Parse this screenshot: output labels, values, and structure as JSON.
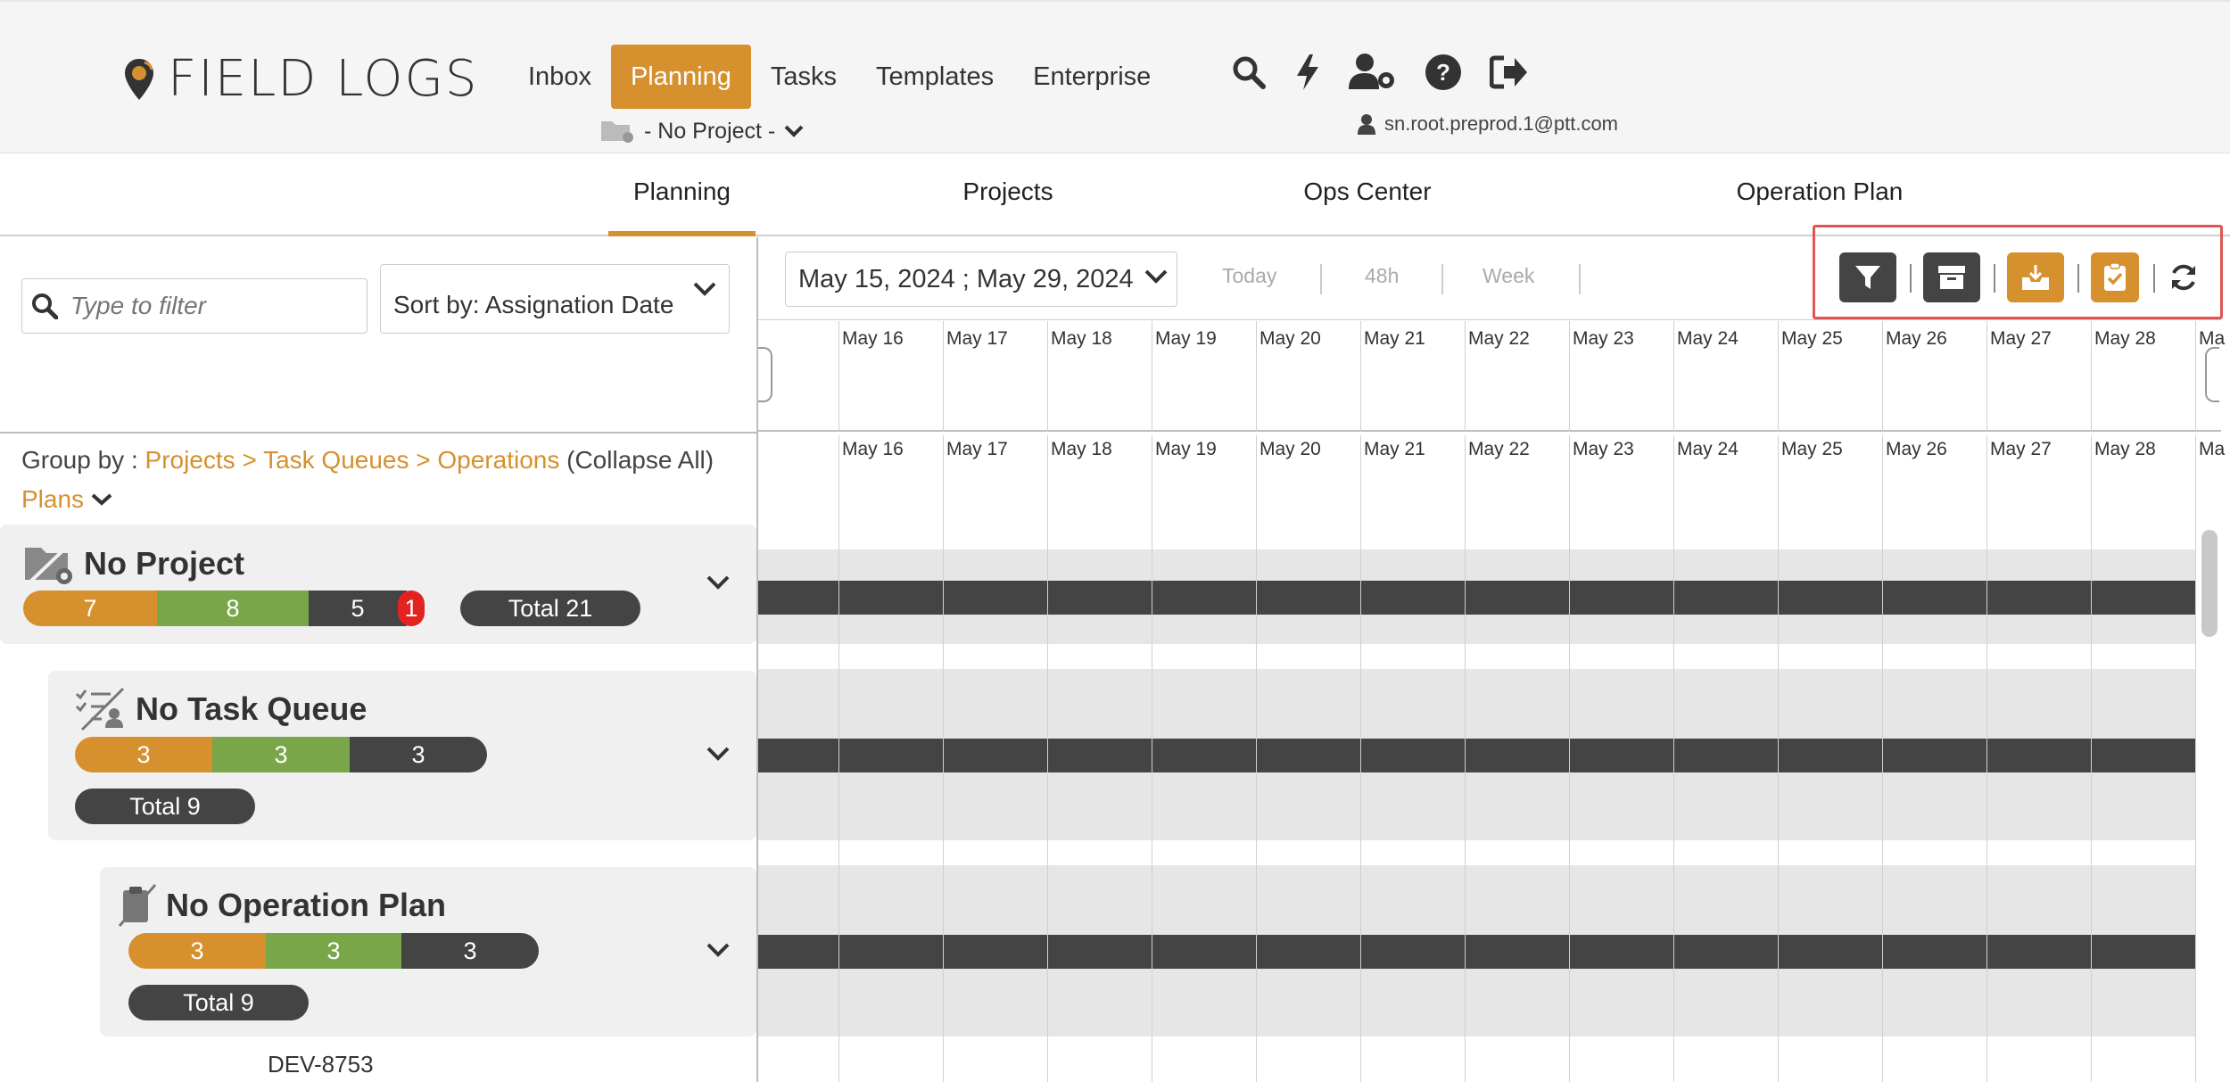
{
  "app": {
    "logo_text": "FIELD LOGS"
  },
  "nav": {
    "items": [
      "Inbox",
      "Planning",
      "Tasks",
      "Templates",
      "Enterprise"
    ],
    "active": "Planning",
    "icons": [
      "search-icon",
      "bolt-icon",
      "user-gear-icon",
      "help-icon",
      "logout-icon"
    ]
  },
  "project_selector": {
    "label": "- No Project -"
  },
  "user": {
    "email": "sn.root.preprod.1@ptt.com"
  },
  "subtabs": {
    "items": [
      "Planning",
      "Projects",
      "Ops Center",
      "Operation Plan"
    ],
    "active": "Planning"
  },
  "filter": {
    "placeholder": "Type to filter"
  },
  "sort": {
    "label": "Sort by: Assignation Date"
  },
  "groupby": {
    "prefix": "Group by :",
    "path": "Projects > Task Queues > Operations",
    "collapse": "(Collapse All)",
    "plans": "Plans"
  },
  "date_range": {
    "label": "May 15, 2024 ; May 29, 2024"
  },
  "quick_ranges": [
    "Today",
    "48h",
    "Week"
  ],
  "toolbar_icons": [
    "filter-icon",
    "archive-icon",
    "inbox-download-icon",
    "clipboard-check-icon",
    "refresh-icon"
  ],
  "timeline": {
    "days": [
      "May 16",
      "May 17",
      "May 18",
      "May 19",
      "May 20",
      "May 21",
      "May 22",
      "May 23",
      "May 24",
      "May 25",
      "May 26",
      "May 27",
      "May 28",
      "Ma"
    ]
  },
  "groups": [
    {
      "title": "No Project",
      "counts": [
        "7",
        "8",
        "5",
        "1"
      ],
      "total": "Total 21"
    },
    {
      "title": "No Task Queue",
      "counts": [
        "3",
        "3",
        "3"
      ],
      "total": "Total 9"
    },
    {
      "title": "No Operation Plan",
      "counts": [
        "3",
        "3",
        "3"
      ],
      "total": "Total 9"
    }
  ],
  "operation": {
    "id": "DEV-8753"
  },
  "colors": {
    "accent": "#d6902e",
    "green": "#7aa64a",
    "dark": "#444444",
    "alert": "#e3231f"
  }
}
